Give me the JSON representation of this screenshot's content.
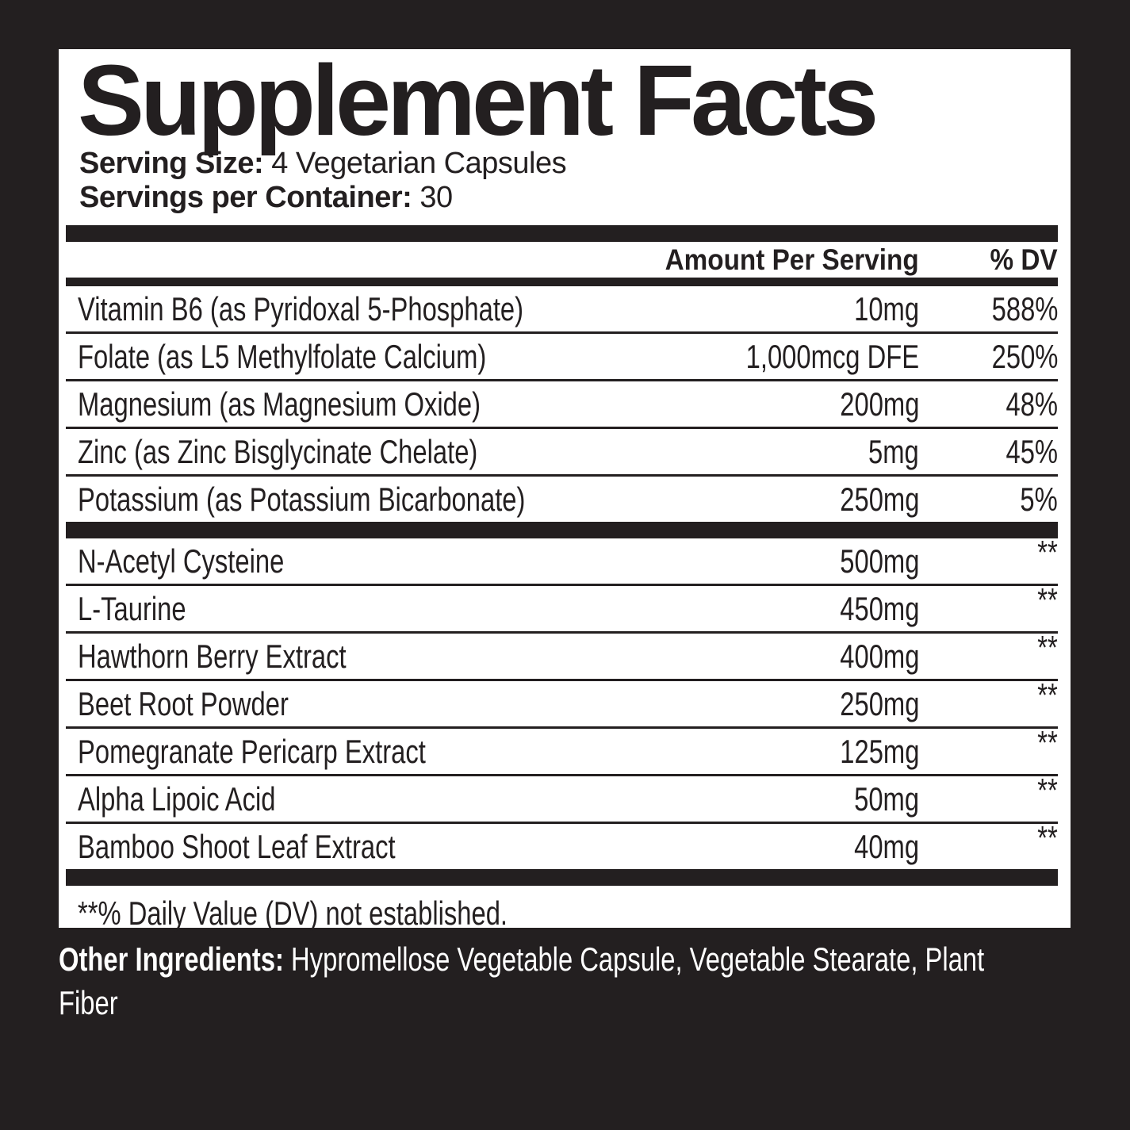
{
  "label": {
    "title": "Supplement Facts",
    "serving_size_label": "Serving Size:",
    "serving_size_value": " 4 Vegetarian Capsules",
    "servings_per_container_label": "Servings per Container:",
    "servings_per_container_value": " 30",
    "header": {
      "amount": "Amount Per Serving",
      "dv": "% DV"
    },
    "section1": [
      {
        "name": "Vitamin B6 (as Pyridoxal 5-Phosphate)",
        "amount": "10mg",
        "dv": "588%"
      },
      {
        "name": "Folate (as L5 Methylfolate Calcium)",
        "amount": "1,000mcg DFE",
        "dv": "250%"
      },
      {
        "name": "Magnesium (as Magnesium Oxide)",
        "amount": "200mg",
        "dv": "48%"
      },
      {
        "name": "Zinc (as Zinc Bisglycinate Chelate)",
        "amount": "5mg",
        "dv": "45%"
      },
      {
        "name": "Potassium (as Potassium Bicarbonate)",
        "amount": "250mg",
        "dv": "5%"
      }
    ],
    "section2": [
      {
        "name": "N-Acetyl Cysteine",
        "amount": "500mg",
        "dv": "**"
      },
      {
        "name": "L-Taurine",
        "amount": "450mg",
        "dv": "**"
      },
      {
        "name": "Hawthorn Berry Extract",
        "amount": "400mg",
        "dv": "**"
      },
      {
        "name": "Beet Root Powder",
        "amount": "250mg",
        "dv": "**"
      },
      {
        "name": "Pomegranate Pericarp Extract",
        "amount": "125mg",
        "dv": "**"
      },
      {
        "name": "Alpha Lipoic Acid",
        "amount": "50mg",
        "dv": "**"
      },
      {
        "name": "Bamboo Shoot Leaf Extract",
        "amount": "40mg",
        "dv": "**"
      }
    ],
    "footnote": "**% Daily Value (DV) not established.",
    "other_ingredients_label": "Other Ingredients:",
    "other_ingredients_value": " Hypromellose Vegetable Capsule, Vegetable Stearate, Plant Fiber",
    "colors": {
      "background": "#231f20",
      "panel": "#ffffff",
      "ink": "#231f20",
      "other_text": "#ffffff"
    }
  }
}
